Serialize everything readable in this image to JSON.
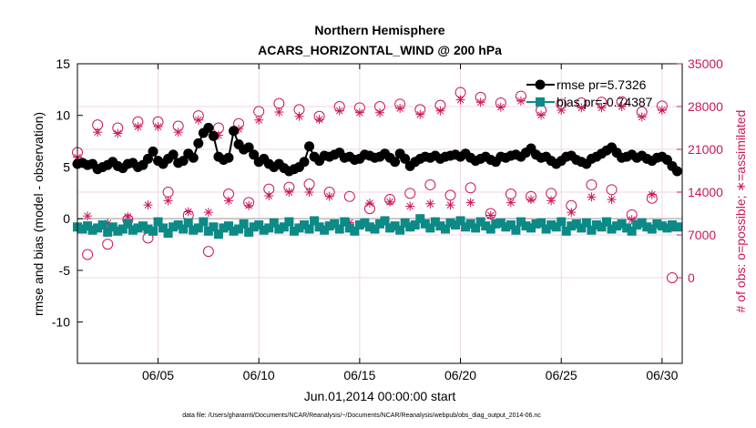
{
  "chart_data": {
    "type": "line",
    "title": "Northern Hemisphere",
    "subtitle": "ACARS_HORIZONTAL_WIND @ 200 hPa",
    "xlabel": "Jun.01,2014 00:00:00 start",
    "ylabel": "rmse and bias (model - observation)",
    "ylabel_right": "# of obs: o=possible; ∗=assimilated",
    "footnote": "data file: /Users/gharamti/Documents/NCAR/Reanalysis/~/Documents/NCAR/Reanalysis/webpub/obs_diag_output_2014-06.nc",
    "xlim": [
      1,
      31
    ],
    "ylim": [
      -14,
      15
    ],
    "ylim_right": [
      -14000,
      35000
    ],
    "x_ticks": [
      5,
      10,
      15,
      20,
      25,
      30
    ],
    "x_tick_labels": [
      "06/05",
      "06/10",
      "06/15",
      "06/20",
      "06/25",
      "06/30"
    ],
    "y_ticks": [
      15,
      10,
      5,
      0,
      -5,
      -10
    ],
    "y_tick_labels": [
      "15",
      "10",
      "5",
      "0",
      "-5",
      "-10"
    ],
    "y_right_ticks": [
      35000,
      28000,
      21000,
      14000,
      7000,
      0
    ],
    "y_right_tick_labels": [
      "35000",
      "28000",
      "21000",
      "14000",
      "7000",
      "0"
    ],
    "grid": true,
    "colors": {
      "rmse": "#000000",
      "bias": "#0b8a86",
      "obs": "#c8185a",
      "zero_line": "#b8b8b8",
      "grid": "#f0d6e0"
    },
    "series": [
      {
        "name": "rmse pr=5.7326",
        "marker": "circle",
        "x": [
          1.0,
          1.25,
          1.5,
          1.75,
          2.0,
          2.25,
          2.5,
          2.75,
          3.0,
          3.25,
          3.5,
          3.75,
          4.0,
          4.25,
          4.5,
          4.75,
          5.0,
          5.25,
          5.5,
          5.75,
          6.0,
          6.25,
          6.5,
          6.75,
          7.0,
          7.25,
          7.5,
          7.75,
          8.0,
          8.25,
          8.5,
          8.75,
          9.0,
          9.25,
          9.5,
          9.75,
          10.0,
          10.25,
          10.5,
          10.75,
          11.0,
          11.25,
          11.5,
          11.75,
          12.0,
          12.25,
          12.5,
          12.75,
          13.0,
          13.25,
          13.5,
          13.75,
          14.0,
          14.25,
          14.5,
          14.75,
          15.0,
          15.25,
          15.5,
          15.75,
          16.0,
          16.25,
          16.5,
          16.75,
          17.0,
          17.25,
          17.5,
          17.75,
          18.0,
          18.25,
          18.5,
          18.75,
          19.0,
          19.25,
          19.5,
          19.75,
          20.0,
          20.25,
          20.5,
          20.75,
          21.0,
          21.25,
          21.5,
          21.75,
          22.0,
          22.25,
          22.5,
          22.75,
          23.0,
          23.25,
          23.5,
          23.75,
          24.0,
          24.25,
          24.5,
          24.75,
          25.0,
          25.25,
          25.5,
          25.75,
          26.0,
          26.25,
          26.5,
          26.75,
          27.0,
          27.25,
          27.5,
          27.75,
          28.0,
          28.25,
          28.5,
          28.75,
          29.0,
          29.25,
          29.5,
          29.75,
          30.0,
          30.25,
          30.5,
          30.75
        ],
        "values": [
          5.3,
          5.4,
          5.2,
          5.3,
          4.8,
          5.0,
          5.2,
          5.5,
          5.1,
          4.9,
          5.3,
          5.4,
          5.0,
          5.2,
          5.8,
          6.5,
          5.6,
          5.3,
          5.8,
          6.2,
          5.4,
          5.6,
          6.3,
          5.9,
          7.3,
          8.3,
          8.8,
          8.0,
          6.0,
          5.7,
          5.9,
          8.5,
          7.2,
          6.7,
          6.9,
          6.2,
          5.5,
          5.8,
          5.3,
          5.0,
          5.3,
          4.9,
          4.6,
          4.8,
          5.0,
          5.5,
          7.0,
          6.0,
          5.6,
          6.1,
          6.0,
          6.2,
          6.4,
          5.9,
          6.0,
          5.7,
          5.8,
          6.2,
          6.1,
          5.9,
          6.0,
          6.3,
          5.9,
          5.5,
          6.3,
          5.8,
          5.1,
          5.5,
          5.8,
          6.0,
          5.9,
          6.1,
          5.8,
          6.0,
          6.1,
          6.2,
          6.0,
          6.3,
          5.9,
          5.6,
          5.8,
          6.0,
          5.7,
          5.5,
          6.0,
          5.9,
          6.1,
          6.2,
          6.0,
          6.4,
          6.8,
          6.2,
          5.9,
          6.0,
          5.6,
          5.3,
          5.6,
          6.0,
          6.1,
          5.7,
          5.5,
          5.3,
          5.8,
          6.0,
          6.3,
          6.6,
          6.9,
          6.4,
          5.9,
          6.0,
          6.2,
          5.9,
          6.1,
          5.8,
          5.6,
          5.9,
          6.0,
          5.7,
          5.1,
          4.6
        ]
      },
      {
        "name": "bias pr=-0.74387",
        "marker": "square",
        "x": [
          1.0,
          1.25,
          1.5,
          1.75,
          2.0,
          2.25,
          2.5,
          2.75,
          3.0,
          3.25,
          3.5,
          3.75,
          4.0,
          4.25,
          4.5,
          4.75,
          5.0,
          5.25,
          5.5,
          5.75,
          6.0,
          6.25,
          6.5,
          6.75,
          7.0,
          7.25,
          7.5,
          7.75,
          8.0,
          8.25,
          8.5,
          8.75,
          9.0,
          9.25,
          9.5,
          9.75,
          10.0,
          10.25,
          10.5,
          10.75,
          11.0,
          11.25,
          11.5,
          11.75,
          12.0,
          12.25,
          12.5,
          12.75,
          13.0,
          13.25,
          13.5,
          13.75,
          14.0,
          14.25,
          14.5,
          14.75,
          15.0,
          15.25,
          15.5,
          15.75,
          16.0,
          16.25,
          16.5,
          16.75,
          17.0,
          17.25,
          17.5,
          17.75,
          18.0,
          18.25,
          18.5,
          18.75,
          19.0,
          19.25,
          19.5,
          19.75,
          20.0,
          20.25,
          20.5,
          20.75,
          21.0,
          21.25,
          21.5,
          21.75,
          22.0,
          22.25,
          22.5,
          22.75,
          23.0,
          23.25,
          23.5,
          23.75,
          24.0,
          24.25,
          24.5,
          24.75,
          25.0,
          25.25,
          25.5,
          25.75,
          26.0,
          26.25,
          26.5,
          26.75,
          27.0,
          27.25,
          27.5,
          27.75,
          28.0,
          28.25,
          28.5,
          28.75,
          29.0,
          29.25,
          29.5,
          29.75,
          30.0,
          30.25,
          30.5,
          30.75
        ],
        "values": [
          -0.8,
          -1.0,
          -0.7,
          -1.1,
          -0.9,
          -0.6,
          -1.3,
          -0.8,
          -1.2,
          -1.0,
          -0.5,
          -1.1,
          -0.9,
          -0.7,
          -1.0,
          -1.2,
          -0.3,
          -0.9,
          -1.4,
          -0.8,
          -0.6,
          -1.0,
          -0.4,
          -1.1,
          -0.9,
          -0.3,
          -1.2,
          -0.8,
          -1.5,
          -0.9,
          -0.7,
          -1.2,
          -1.0,
          -0.5,
          -1.3,
          -0.8,
          -0.6,
          -1.1,
          -0.9,
          -0.4,
          -1.0,
          -0.8,
          -0.3,
          -1.2,
          -0.9,
          -0.6,
          -1.0,
          -0.2,
          -0.8,
          -1.1,
          -0.7,
          -0.5,
          -1.0,
          -0.3,
          -0.9,
          -1.2,
          -0.6,
          -0.4,
          -0.8,
          -1.0,
          -0.5,
          -0.2,
          -0.9,
          -0.7,
          -1.1,
          -0.4,
          -0.8,
          -0.6,
          0.0,
          -0.5,
          -0.9,
          -0.3,
          -0.7,
          -1.0,
          -0.4,
          -0.6,
          -0.2,
          -0.8,
          -0.5,
          -0.9,
          -0.3,
          -0.7,
          -1.0,
          -0.5,
          -0.4,
          -0.8,
          -0.6,
          -1.1,
          -0.3,
          -0.7,
          -0.9,
          -0.5,
          -0.4,
          -1.0,
          -0.6,
          -0.8,
          -0.3,
          -1.2,
          -0.7,
          -0.5,
          -0.9,
          -0.4,
          -1.1,
          -0.6,
          -0.8,
          -0.3,
          -1.0,
          -0.7,
          -0.5,
          -0.9,
          -1.2,
          -0.6,
          -0.4,
          -0.8,
          -1.0,
          -0.5,
          -0.7,
          -0.9,
          -0.6,
          -0.8
        ]
      },
      {
        "name": "obs possible",
        "marker": "open-circle",
        "axis": "right",
        "x": [
          1.0,
          1.5,
          2.0,
          2.5,
          3.0,
          3.5,
          4.0,
          4.5,
          5.0,
          5.5,
          6.0,
          6.5,
          7.0,
          7.5,
          8.0,
          8.5,
          9.0,
          9.5,
          10.0,
          10.5,
          11.0,
          11.5,
          12.0,
          12.5,
          13.0,
          13.5,
          14.0,
          14.5,
          15.0,
          15.5,
          16.0,
          16.5,
          17.0,
          17.5,
          18.0,
          18.5,
          19.0,
          19.5,
          20.0,
          20.5,
          21.0,
          21.5,
          22.0,
          22.5,
          23.0,
          23.5,
          24.0,
          24.5,
          25.0,
          25.5,
          26.0,
          26.5,
          27.0,
          27.5,
          28.0,
          28.5,
          29.0,
          29.5,
          30.0,
          30.5
        ],
        "values": [
          20500,
          3800,
          25000,
          5500,
          24500,
          9500,
          25500,
          6500,
          25500,
          14000,
          24800,
          10200,
          26500,
          4300,
          24500,
          13700,
          25200,
          12300,
          27200,
          14500,
          28500,
          14800,
          27500,
          15300,
          26400,
          14000,
          28000,
          13300,
          27800,
          11300,
          28000,
          12800,
          28400,
          13800,
          27500,
          15200,
          28200,
          13500,
          30300,
          14700,
          29500,
          10500,
          28600,
          13700,
          29700,
          13300,
          27400,
          13800,
          28400,
          11800,
          28600,
          15200,
          28700,
          14400,
          28800,
          10300,
          27100,
          13000,
          28100,
          0
        ]
      },
      {
        "name": "obs assimilated",
        "marker": "asterisk",
        "axis": "right",
        "x": [
          1.0,
          1.5,
          2.0,
          2.5,
          3.0,
          3.5,
          4.0,
          4.5,
          5.0,
          5.5,
          6.0,
          6.5,
          7.0,
          7.5,
          8.0,
          8.5,
          9.0,
          9.5,
          10.0,
          10.5,
          11.0,
          11.5,
          12.0,
          12.5,
          13.0,
          13.5,
          14.0,
          14.5,
          15.0,
          15.5,
          16.0,
          16.5,
          17.0,
          17.5,
          18.0,
          18.5,
          19.0,
          19.5,
          20.0,
          20.5,
          21.0,
          21.5,
          22.0,
          22.5,
          23.0,
          23.5,
          24.0,
          24.5,
          25.0,
          25.5,
          26.0,
          26.5,
          27.0,
          27.5,
          28.0,
          28.5,
          29.0,
          29.5,
          30.0,
          30.5
        ],
        "values": [
          19700,
          10100,
          23800,
          8900,
          23600,
          10000,
          24700,
          11900,
          24700,
          12600,
          23800,
          10800,
          25800,
          10700,
          23300,
          12600,
          24300,
          11800,
          25800,
          13400,
          27100,
          14000,
          26400,
          14000,
          25900,
          13300,
          27300,
          9000,
          27000,
          12200,
          27000,
          12400,
          27700,
          11700,
          26700,
          12100,
          27300,
          11900,
          29100,
          12300,
          28700,
          10200,
          27900,
          12300,
          28900,
          12800,
          26600,
          12600,
          27400,
          10700,
          27800,
          13200,
          27800,
          12800,
          28000,
          9500,
          26300,
          13600,
          27400,
          8300
        ]
      }
    ]
  }
}
